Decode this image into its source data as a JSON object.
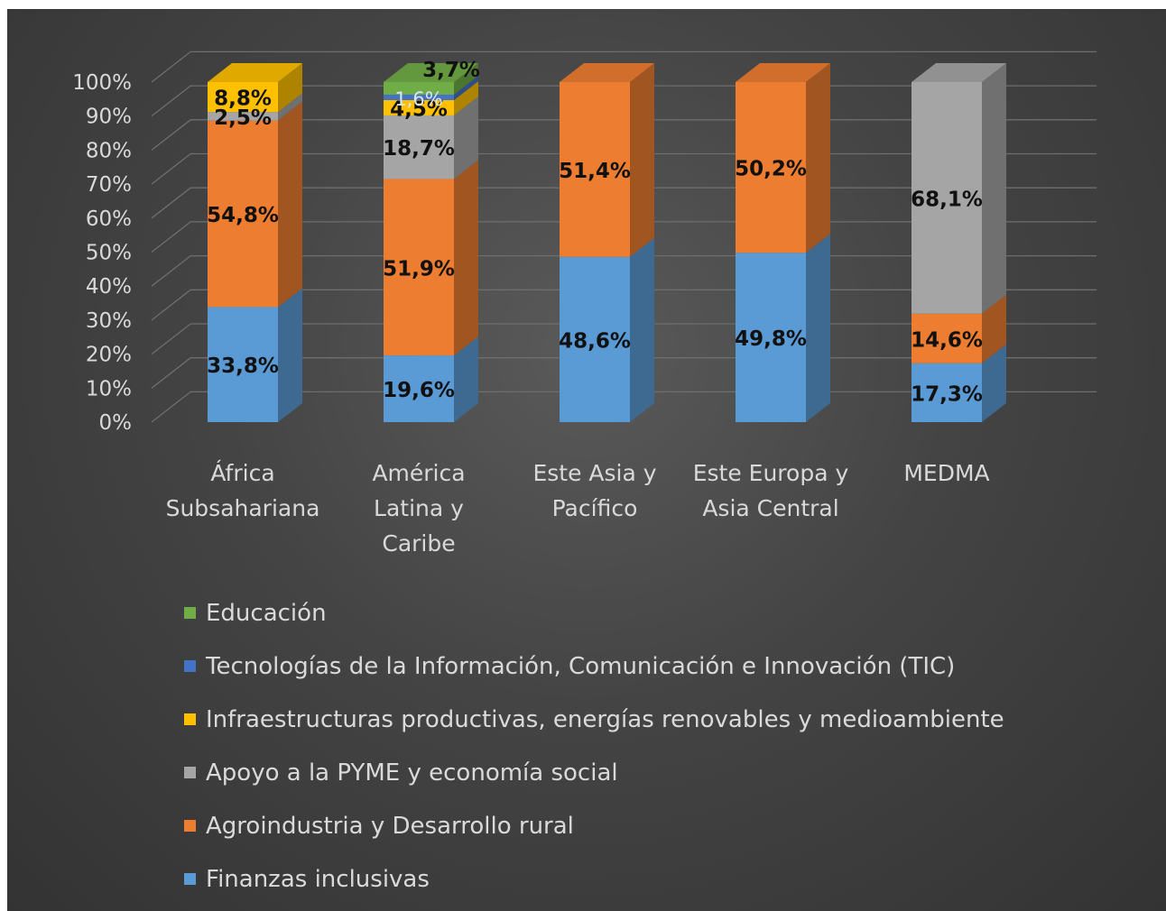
{
  "chart_data": {
    "type": "bar",
    "stacked": true,
    "stacked_100_percent": true,
    "three_d": true,
    "categories": [
      [
        "África",
        "Subsahariana"
      ],
      [
        "América",
        "Latina y",
        "Caribe"
      ],
      [
        "Este Asia y",
        "Pacífico"
      ],
      [
        "Este Europa y",
        "Asia Central"
      ],
      [
        "MEDMA"
      ]
    ],
    "yticks": [
      "0%",
      "10%",
      "20%",
      "30%",
      "40%",
      "50%",
      "60%",
      "70%",
      "80%",
      "90%",
      "100%"
    ],
    "ylim": [
      0,
      100
    ],
    "grid": true,
    "legend_position": "bottom",
    "series": [
      {
        "name": "Finanzas inclusivas",
        "color": "#5b9bd5",
        "values": [
          33.8,
          19.6,
          48.6,
          49.8,
          17.3
        ],
        "labels": [
          "33,8%",
          "19,6%",
          "48,6%",
          "49,8%",
          "17,3%"
        ]
      },
      {
        "name": "Agroindustria y Desarrollo rural",
        "color": "#ed7d31",
        "values": [
          54.8,
          51.9,
          51.4,
          50.2,
          14.6
        ],
        "labels": [
          "54,8%",
          "51,9%",
          "51,4%",
          "50,2%",
          "14,6%"
        ]
      },
      {
        "name": "Apoyo a la PYME y economía social",
        "color": "#a5a5a5",
        "values": [
          2.5,
          18.7,
          0,
          0,
          68.1
        ],
        "labels": [
          "2,5%",
          "18,7%",
          "",
          "",
          "68,1%"
        ]
      },
      {
        "name": "Infraestructuras productivas, energías renovables y medioambiente",
        "color": "#ffc000",
        "values": [
          8.8,
          4.5,
          0,
          0,
          0
        ],
        "labels": [
          "8,8%",
          "4,5%",
          "",
          "",
          ""
        ]
      },
      {
        "name": "Tecnologías de la Información, Comunicación e Innovación (TIC)",
        "color": "#4472c4",
        "values": [
          0,
          1.6,
          0,
          0,
          0
        ],
        "labels": [
          "",
          "1,6%",
          "",
          "",
          ""
        ]
      },
      {
        "name": "Educación",
        "color": "#70ad47",
        "values": [
          0,
          3.7,
          0,
          0,
          0
        ],
        "labels": [
          "",
          "3,7%",
          "",
          "",
          ""
        ]
      }
    ]
  }
}
